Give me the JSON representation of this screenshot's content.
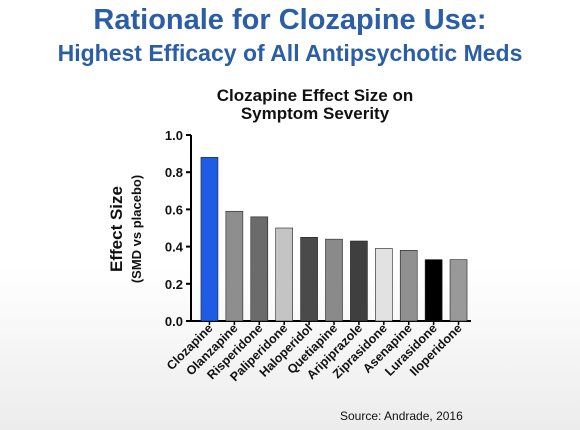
{
  "slide": {
    "title_line1": "Rationale for Clozapine Use:",
    "title_line2": "Highest Efficacy of All Antipsychotic Meds",
    "source": "Source: Andrade, 2016"
  },
  "chart_data": {
    "type": "bar",
    "title_line1": "Clozapine Effect Size on",
    "title_line2": "Symptom Severity",
    "ylabel": "Effect Size",
    "ylabel_sub": "(SMD vs placebo)",
    "xlabel": "",
    "ylim": [
      0,
      1.0
    ],
    "yticks": [
      "0.0",
      "0.2",
      "0.4",
      "0.6",
      "0.8",
      "1.0"
    ],
    "categories": [
      "Clozapine",
      "Olanzapine",
      "Risperidone",
      "Paliperidone",
      "Haloperidol",
      "Quetiapine",
      "Aripiprazole",
      "Ziprasidone",
      "Asenapine",
      "Lurasidone",
      "Iloperidone"
    ],
    "values": [
      0.88,
      0.59,
      0.56,
      0.5,
      0.45,
      0.44,
      0.43,
      0.39,
      0.38,
      0.33,
      0.33
    ],
    "colors": [
      "#1e5ce6",
      "#8e8e8e",
      "#6b6b6b",
      "#c4c4c4",
      "#4a4a4a",
      "#8a8a8a",
      "#3f3f3f",
      "#e2e2e2",
      "#909090",
      "#000000",
      "#999999"
    ],
    "grid": false
  }
}
